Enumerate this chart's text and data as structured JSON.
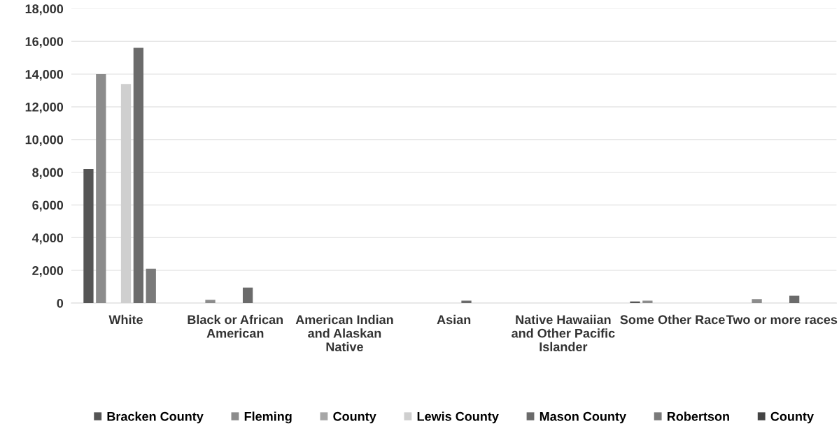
{
  "chart_data": {
    "type": "bar",
    "categories": [
      "White",
      "Black or African American",
      "American Indian and Alaskan Native",
      "Asian",
      "Native Hawaiian and Other Pacific Islander",
      "Some Other Race",
      "Two or more races"
    ],
    "series": [
      {
        "name": "Bracken County",
        "color": "#555555",
        "values": [
          8200,
          0,
          0,
          0,
          0,
          100,
          0
        ]
      },
      {
        "name": "Fleming",
        "color": "#8c8c8c",
        "values": [
          14000,
          200,
          0,
          0,
          0,
          150,
          250
        ]
      },
      {
        "name": "County",
        "color": "#a6a6a6",
        "values": [
          0,
          0,
          0,
          0,
          0,
          0,
          0
        ]
      },
      {
        "name": "Lewis County",
        "color": "#cfcfcf",
        "values": [
          13400,
          0,
          0,
          0,
          0,
          0,
          0
        ]
      },
      {
        "name": "Mason County",
        "color": "#6b6b6b",
        "values": [
          15600,
          950,
          0,
          150,
          0,
          0,
          450
        ]
      },
      {
        "name": "Robertson",
        "color": "#7a7a7a",
        "values": [
          2100,
          0,
          0,
          0,
          0,
          0,
          0
        ]
      },
      {
        "name": "County",
        "color": "#444444",
        "values": [
          0,
          0,
          0,
          0,
          0,
          0,
          0
        ]
      }
    ],
    "ylim": [
      0,
      18000
    ],
    "yticks": [
      {
        "value": 0,
        "label": "0"
      },
      {
        "value": 2000,
        "label": "2,000"
      },
      {
        "value": 4000,
        "label": "4,000"
      },
      {
        "value": 6000,
        "label": "6,000"
      },
      {
        "value": 8000,
        "label": "8,000"
      },
      {
        "value": 10000,
        "label": "10,000"
      },
      {
        "value": 12000,
        "label": "12,000"
      },
      {
        "value": 14000,
        "label": "14,000"
      },
      {
        "value": 16000,
        "label": "16,000"
      },
      {
        "value": 18000,
        "label": "18,000"
      }
    ],
    "grid": "y",
    "legend": "bottom"
  }
}
